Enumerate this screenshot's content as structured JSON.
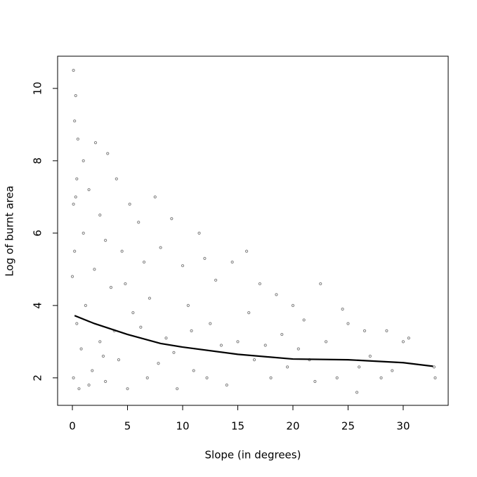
{
  "chart_data": {
    "type": "scatter",
    "xlabel": "Slope (in degrees)",
    "ylabel": "Log of burnt area",
    "xlim": [
      -1.34,
      34.08
    ],
    "ylim": [
      1.24,
      10.89
    ],
    "xticks": [
      0,
      5,
      10,
      15,
      20,
      25,
      30
    ],
    "yticks": [
      2,
      4,
      6,
      8,
      10
    ],
    "color": "#808080",
    "x": [
      0.1,
      0.3,
      0.2,
      0.5,
      1.0,
      0.4,
      2.1,
      3.2,
      1.5,
      0.1,
      2.5,
      4.0,
      5.2,
      6.0,
      7.5,
      9.0,
      11.5,
      3.0,
      4.5,
      6.5,
      8.0,
      10.0,
      12.0,
      14.5,
      15.8,
      13.0,
      17.0,
      18.5,
      20.0,
      22.5,
      24.5,
      21.0,
      25.0,
      26.5,
      28.5,
      30.0,
      30.5,
      32.8,
      32.9,
      29.0,
      27.0,
      25.8,
      24.0,
      22.0,
      20.5,
      19.0,
      18.0,
      16.5,
      15.0,
      14.0,
      12.5,
      11.0,
      10.5,
      9.5,
      8.5,
      7.0,
      6.8,
      5.5,
      5.0,
      4.2,
      3.5,
      3.0,
      2.5,
      2.0,
      1.8,
      1.2,
      1.0,
      0.8,
      0.6,
      0.4,
      0.2,
      0.1,
      0.0,
      0.3,
      1.5,
      2.8,
      3.8,
      4.8,
      6.2,
      7.8,
      9.2,
      10.8,
      12.2,
      13.5,
      16.0,
      17.5,
      19.5,
      21.5,
      23.0,
      26.0,
      28.0
    ],
    "y": [
      10.5,
      9.8,
      9.1,
      8.6,
      8.0,
      7.5,
      8.5,
      8.2,
      7.2,
      6.8,
      6.5,
      7.5,
      6.8,
      6.3,
      7.0,
      6.4,
      6.0,
      5.8,
      5.5,
      5.2,
      5.6,
      5.1,
      5.3,
      5.2,
      5.5,
      4.7,
      4.6,
      4.3,
      4.0,
      4.6,
      3.9,
      3.6,
      3.5,
      3.3,
      3.3,
      3.0,
      3.1,
      2.3,
      2.0,
      2.2,
      2.6,
      1.6,
      2.0,
      1.9,
      2.8,
      3.2,
      2.0,
      2.5,
      3.0,
      1.8,
      3.5,
      2.2,
      4.0,
      1.7,
      3.1,
      4.2,
      2.0,
      3.8,
      1.7,
      2.5,
      4.5,
      1.9,
      3.0,
      5.0,
      2.2,
      4.0,
      6.0,
      2.8,
      1.7,
      3.5,
      5.5,
      2.0,
      4.8,
      7.0,
      1.8,
      2.6,
      3.3,
      4.6,
      3.4,
      2.4,
      2.7,
      3.3,
      2.0,
      2.9,
      3.8,
      2.9,
      2.3,
      2.5,
      3.0,
      2.3,
      2.0
    ],
    "line": {
      "color": "#000000",
      "x": [
        0.2,
        2,
        5,
        8,
        10,
        15,
        20,
        25,
        30,
        32.7
      ],
      "y": [
        3.72,
        3.5,
        3.2,
        2.95,
        2.85,
        2.65,
        2.52,
        2.5,
        2.42,
        2.32
      ]
    }
  }
}
